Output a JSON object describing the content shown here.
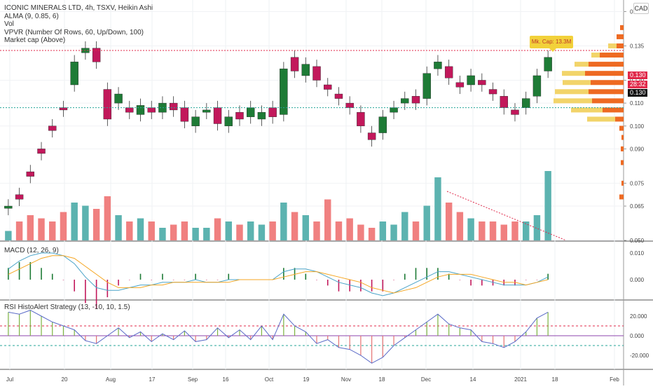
{
  "legend": {
    "title": "ICONIC MINERALS LTD, 4h, TSXV, Heikin Ashi",
    "lines": [
      "ALMA (9, 0.85, 6)",
      "Vol",
      "VPVR (Number Of Rows, 60, Up/Down, 100)",
      "Market cap (Above)"
    ]
  },
  "currency": "CAD",
  "market_cap_label": "Mk. Cap: 13.3M",
  "price_tags": {
    "upper": "0.130",
    "countdown": "28:32",
    "last": "0.130"
  },
  "colors": {
    "up": "#1e7b36",
    "down": "#c2185b",
    "vol_up": "#5cb3b0",
    "vol_down": "#f08080",
    "macd_line": "#4aa3c8",
    "signal_line": "#f5a623",
    "rsi_line": "#5b6bc8",
    "vpvr_up": "#f2d46a",
    "vpvr_down": "#ee6a22"
  },
  "x_axis": [
    "Jul",
    "20",
    "Aug",
    "17",
    "Sep",
    "16",
    "Oct",
    "19",
    "Nov",
    "18",
    "Dec",
    "14",
    "2021",
    "18",
    "Feb"
  ],
  "price_axis": [
    "0.150",
    "0.135",
    "0.120",
    "0.110",
    "0.100",
    "0.090",
    "0.075",
    "0.065",
    "0.050"
  ],
  "macd_label": "MACD (12, 26, 9)",
  "macd_axis": [
    "0.010",
    "0.000"
  ],
  "rsi_label": "RSI HistoAlert Strategy (13, -10, 10, 1.5)",
  "rsi_axis": [
    "20.000",
    "0.000",
    "-20.000"
  ],
  "chart_data": {
    "type": "candlestick",
    "price_range": [
      0.05,
      0.152
    ],
    "resistance_level": 0.133,
    "support_level": 0.108,
    "price_path": [
      [
        0.064,
        0.065
      ],
      [
        0.07,
        0.068
      ],
      [
        0.08,
        0.078
      ],
      [
        0.09,
        0.088
      ],
      [
        0.1,
        0.098
      ],
      [
        0.108,
        0.107
      ],
      [
        0.118,
        0.128
      ],
      [
        0.132,
        0.134
      ],
      [
        0.134,
        0.128
      ],
      [
        0.116,
        0.103
      ],
      [
        0.11,
        0.114
      ],
      [
        0.108,
        0.106
      ],
      [
        0.105,
        0.109
      ],
      [
        0.108,
        0.106
      ],
      [
        0.106,
        0.11
      ],
      [
        0.11,
        0.107
      ],
      [
        0.108,
        0.102
      ],
      [
        0.1,
        0.104
      ],
      [
        0.106,
        0.107
      ],
      [
        0.108,
        0.101
      ],
      [
        0.1,
        0.104
      ],
      [
        0.106,
        0.103
      ],
      [
        0.104,
        0.108
      ],
      [
        0.103,
        0.106
      ],
      [
        0.108,
        0.104
      ],
      [
        0.105,
        0.125
      ],
      [
        0.13,
        0.124
      ],
      [
        0.122,
        0.127
      ],
      [
        0.126,
        0.12
      ],
      [
        0.118,
        0.116
      ],
      [
        0.114,
        0.112
      ],
      [
        0.11,
        0.108
      ],
      [
        0.106,
        0.1
      ],
      [
        0.097,
        0.094
      ],
      [
        0.097,
        0.104
      ],
      [
        0.106,
        0.108
      ],
      [
        0.11,
        0.112
      ],
      [
        0.113,
        0.11
      ],
      [
        0.112,
        0.123
      ],
      [
        0.125,
        0.128
      ],
      [
        0.126,
        0.121
      ],
      [
        0.119,
        0.117
      ],
      [
        0.118,
        0.122
      ],
      [
        0.12,
        0.118
      ],
      [
        0.116,
        0.114
      ],
      [
        0.113,
        0.108
      ],
      [
        0.107,
        0.105
      ],
      [
        0.108,
        0.112
      ],
      [
        0.113,
        0.122
      ],
      [
        0.124,
        0.13
      ]
    ],
    "volume": [
      0.15,
      0.3,
      0.4,
      0.35,
      0.3,
      0.45,
      0.6,
      0.55,
      0.5,
      0.7,
      0.4,
      0.3,
      0.35,
      0.3,
      0.2,
      0.25,
      0.3,
      0.2,
      0.2,
      0.35,
      0.3,
      0.25,
      0.3,
      0.25,
      0.3,
      0.6,
      0.45,
      0.4,
      0.3,
      0.65,
      0.3,
      0.35,
      0.25,
      0.2,
      0.3,
      0.25,
      0.45,
      0.3,
      0.55,
      1.0,
      0.6,
      0.45,
      0.35,
      0.3,
      0.3,
      0.25,
      0.3,
      0.3,
      0.4,
      1.1
    ],
    "macd": [
      0.004,
      0.007,
      0.009,
      0.01,
      0.01,
      0.009,
      0.006,
      0.001,
      -0.003,
      -0.004,
      -0.004,
      -0.003,
      -0.002,
      -0.002,
      -0.001,
      -0.001,
      -0.001,
      0.0,
      -0.001,
      -0.001,
      0.0,
      0.0,
      0.0,
      0.0,
      0.0,
      0.003,
      0.004,
      0.004,
      0.003,
      0.001,
      -0.001,
      -0.002,
      -0.003,
      -0.005,
      -0.006,
      -0.005,
      -0.003,
      -0.001,
      0.001,
      0.003,
      0.003,
      0.002,
      0.001,
      0.0,
      -0.001,
      -0.002,
      -0.002,
      -0.002,
      -0.001,
      0.001
    ],
    "signal": [
      0.002,
      0.004,
      0.006,
      0.008,
      0.009,
      0.009,
      0.008,
      0.005,
      0.002,
      -0.001,
      -0.003,
      -0.003,
      -0.003,
      -0.002,
      -0.002,
      -0.001,
      -0.001,
      -0.001,
      -0.001,
      -0.001,
      -0.001,
      0.0,
      0.0,
      0.0,
      0.0,
      0.001,
      0.002,
      0.003,
      0.003,
      0.002,
      0.001,
      0.0,
      -0.001,
      -0.003,
      -0.004,
      -0.005,
      -0.004,
      -0.003,
      -0.001,
      0.001,
      0.002,
      0.002,
      0.002,
      0.001,
      0.0,
      -0.001,
      -0.001,
      -0.002,
      -0.001,
      0.0
    ],
    "rsi": [
      24,
      22,
      26,
      20,
      14,
      10,
      6,
      -5,
      -8,
      0,
      8,
      -2,
      4,
      -6,
      2,
      -4,
      5,
      -6,
      -4,
      8,
      -2,
      6,
      -4,
      10,
      -4,
      22,
      10,
      4,
      -8,
      -4,
      -12,
      -14,
      -20,
      -28,
      -22,
      -10,
      -2,
      6,
      14,
      22,
      12,
      8,
      6,
      -6,
      -8,
      -12,
      -6,
      4,
      18,
      24
    ],
    "vpvr": [
      {
        "price": 0.143,
        "up": 0,
        "down": 5
      },
      {
        "price": 0.139,
        "up": 0,
        "down": 10
      },
      {
        "price": 0.135,
        "up": 12,
        "down": 10
      },
      {
        "price": 0.131,
        "up": 12,
        "down": 34
      },
      {
        "price": 0.127,
        "up": 20,
        "down": 50
      },
      {
        "price": 0.123,
        "up": 33,
        "down": 55
      },
      {
        "price": 0.119,
        "up": 40,
        "down": 47
      },
      {
        "price": 0.115,
        "up": 48,
        "down": 50
      },
      {
        "price": 0.111,
        "up": 55,
        "down": 45
      },
      {
        "price": 0.107,
        "up": 45,
        "down": 30
      },
      {
        "price": 0.103,
        "up": 40,
        "down": 12
      },
      {
        "price": 0.099,
        "up": 0,
        "down": 6
      },
      {
        "price": 0.095,
        "up": 0,
        "down": 3
      },
      {
        "price": 0.09,
        "up": 0,
        "down": 4
      },
      {
        "price": 0.084,
        "up": 0,
        "down": 4
      },
      {
        "price": 0.075,
        "up": 0,
        "down": 3
      },
      {
        "price": 0.069,
        "up": 0,
        "down": 6
      }
    ]
  }
}
